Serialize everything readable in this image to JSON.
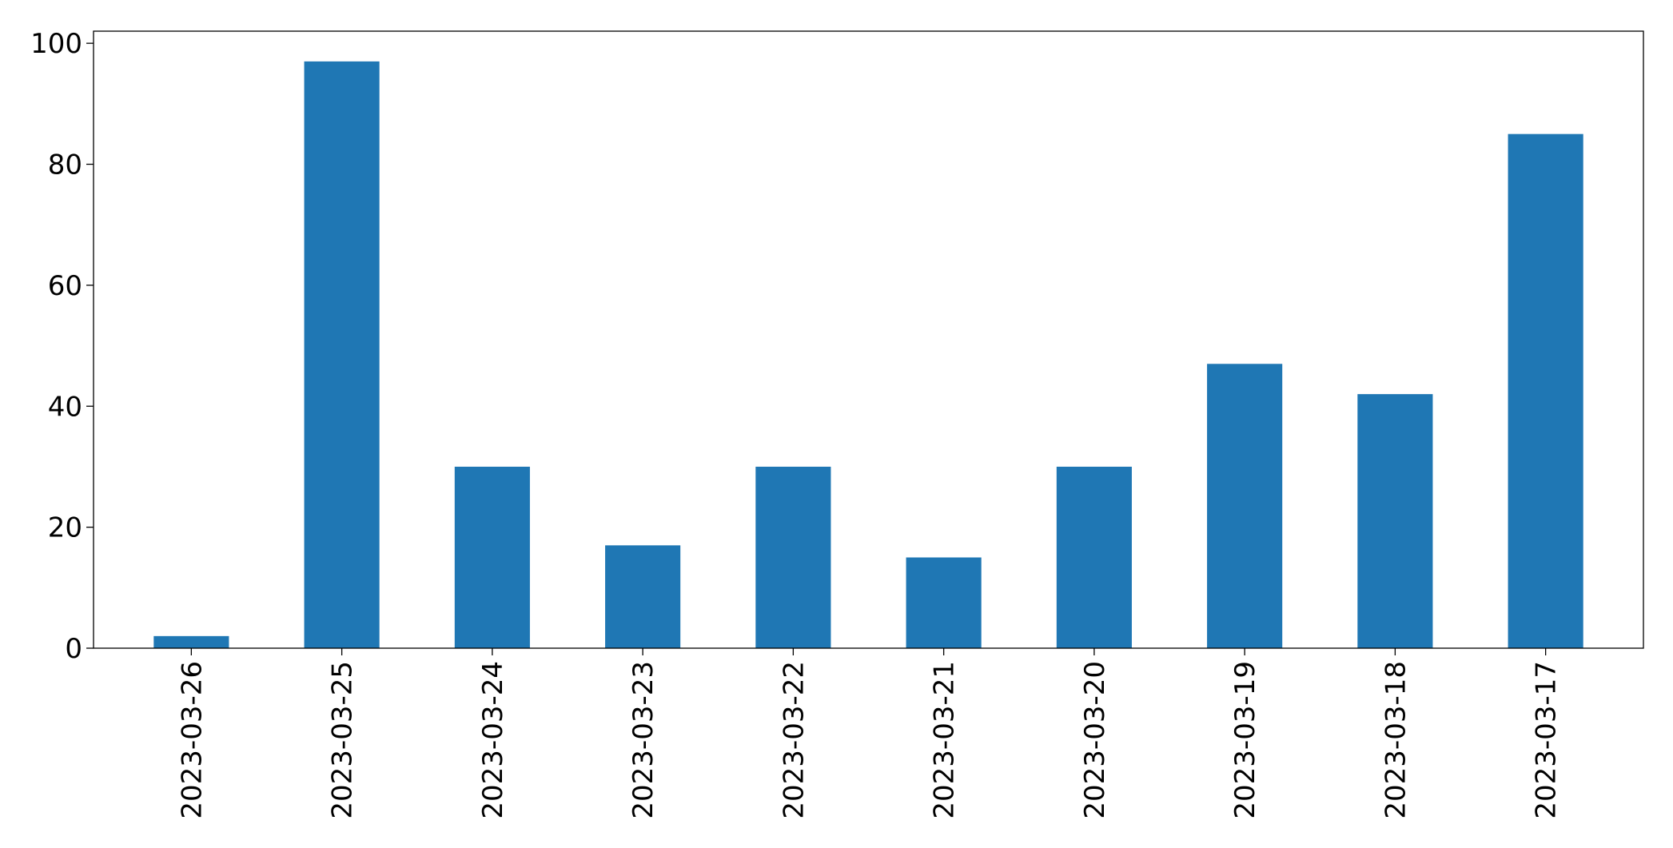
{
  "chart_data": {
    "type": "bar",
    "title": "",
    "xlabel": "",
    "ylabel": "",
    "categories": [
      "2023-03-26",
      "2023-03-25",
      "2023-03-24",
      "2023-03-23",
      "2023-03-22",
      "2023-03-21",
      "2023-03-20",
      "2023-03-19",
      "2023-03-18",
      "2023-03-17"
    ],
    "values": [
      2,
      97,
      30,
      17,
      30,
      15,
      30,
      47,
      42,
      85
    ],
    "ylim": [
      0,
      102
    ],
    "yticks": [
      0,
      20,
      40,
      60,
      80,
      100
    ],
    "bar_color": "#1f77b4",
    "grid": false,
    "legend": "none",
    "x_tick_rotation": "vertical"
  }
}
